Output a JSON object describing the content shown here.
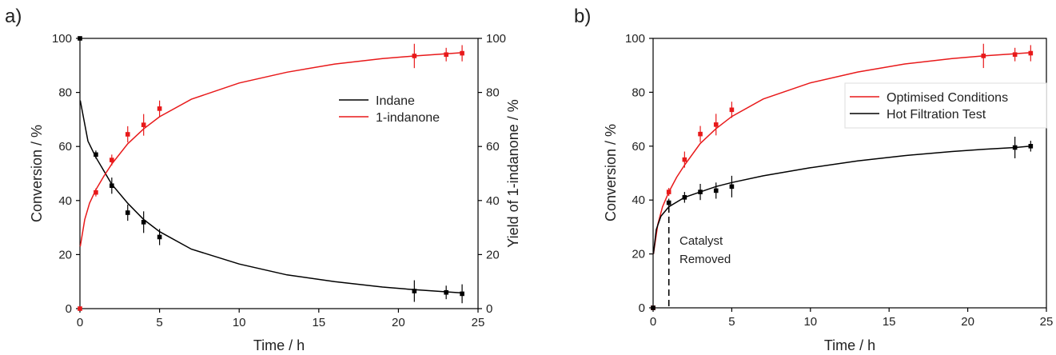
{
  "chart_data": [
    {
      "panel_label": "a)",
      "type": "line",
      "xlabel": "Time / h",
      "ylabel": "Conversion / %",
      "y2label": "Yield of 1-indanone / %",
      "xlim": [
        0,
        25
      ],
      "ylim": [
        0,
        100
      ],
      "y2lim": [
        0,
        100
      ],
      "x_ticks": [
        0,
        5,
        10,
        15,
        20,
        25
      ],
      "y_ticks": [
        0,
        20,
        40,
        60,
        80,
        100
      ],
      "y2_ticks": [
        0,
        20,
        40,
        60,
        80,
        100
      ],
      "legend_position": "upper-right",
      "series": [
        {
          "name": "Indane",
          "color": "#000000",
          "points": [
            {
              "x": 0,
              "y": 100,
              "err": 0
            },
            {
              "x": 1,
              "y": 57,
              "err": 1.5
            },
            {
              "x": 2,
              "y": 45.5,
              "err": 3
            },
            {
              "x": 3,
              "y": 35.5,
              "err": 3
            },
            {
              "x": 4,
              "y": 32,
              "err": 4
            },
            {
              "x": 5,
              "y": 26.5,
              "err": 3
            },
            {
              "x": 21,
              "y": 6.5,
              "err": 4
            },
            {
              "x": 23,
              "y": 6,
              "err": 2.5
            },
            {
              "x": 24,
              "y": 5.5,
              "err": 3.5
            }
          ],
          "fit": {
            "x": [
              0.02,
              0.5,
              1,
              2,
              3,
              4,
              5,
              7,
              10,
              13,
              16,
              19,
              21,
              23,
              24
            ],
            "y": [
              77,
              62,
              56,
              46,
              39,
              33,
              28.5,
              22,
              16.5,
              12.5,
              10,
              8,
              7,
              6.2,
              5.8
            ]
          }
        },
        {
          "name": "1-indanone",
          "color": "#e8191a",
          "points": [
            {
              "x": 0,
              "y": 0,
              "err": 0
            },
            {
              "x": 1,
              "y": 43,
              "err": 1.5
            },
            {
              "x": 2,
              "y": 55,
              "err": 2
            },
            {
              "x": 3,
              "y": 64.5,
              "err": 3
            },
            {
              "x": 4,
              "y": 68,
              "err": 4
            },
            {
              "x": 5,
              "y": 74,
              "err": 3
            },
            {
              "x": 21,
              "y": 93.5,
              "err": 4.5
            },
            {
              "x": 23,
              "y": 94,
              "err": 2.5
            },
            {
              "x": 24,
              "y": 94.5,
              "err": 3
            }
          ],
          "fit": {
            "x": [
              0.02,
              0.3,
              0.6,
              1,
              1.5,
              2,
              3,
              4,
              5,
              7,
              10,
              13,
              16,
              19,
              21,
              23,
              24
            ],
            "y": [
              23,
              33,
              39,
              44,
              49,
              53.5,
              61,
              66.5,
              71,
              77.5,
              83.5,
              87.5,
              90.5,
              92.5,
              93.5,
              94.3,
              94.7
            ]
          }
        }
      ]
    },
    {
      "panel_label": "b)",
      "type": "line",
      "xlabel": "Time / h",
      "ylabel": "Conversion / %",
      "xlim": [
        0,
        25
      ],
      "ylim": [
        0,
        100
      ],
      "x_ticks": [
        0,
        5,
        10,
        15,
        20,
        25
      ],
      "y_ticks": [
        0,
        20,
        40,
        60,
        80,
        100
      ],
      "legend_position": "upper-right",
      "annotation": {
        "text_lines": [
          "Catalyst",
          "Removed"
        ],
        "x": 1
      },
      "series": [
        {
          "name": "Optimised Conditions",
          "color": "#e8191a",
          "points": [
            {
              "x": 0,
              "y": 0,
              "err": 0
            },
            {
              "x": 1,
              "y": 43,
              "err": 1.5
            },
            {
              "x": 2,
              "y": 55,
              "err": 3
            },
            {
              "x": 3,
              "y": 64.5,
              "err": 3
            },
            {
              "x": 4,
              "y": 68,
              "err": 4
            },
            {
              "x": 5,
              "y": 73.5,
              "err": 3
            },
            {
              "x": 21,
              "y": 93.5,
              "err": 4.5
            },
            {
              "x": 23,
              "y": 94,
              "err": 2.5
            },
            {
              "x": 24,
              "y": 94.5,
              "err": 3
            }
          ],
          "fit": {
            "x": [
              0.02,
              0.3,
              0.6,
              1,
              1.5,
              2,
              3,
              4,
              5,
              7,
              10,
              13,
              16,
              19,
              21,
              23,
              24
            ],
            "y": [
              20,
              31,
              37.5,
              43,
              48.5,
              53,
              61,
              66.5,
              71,
              77.5,
              83.5,
              87.5,
              90.5,
              92.5,
              93.5,
              94.3,
              94.7
            ]
          }
        },
        {
          "name": "Hot Filtration Test",
          "color": "#000000",
          "points": [
            {
              "x": 0,
              "y": 0,
              "err": 0
            },
            {
              "x": 1,
              "y": 39,
              "err": 1.5
            },
            {
              "x": 2,
              "y": 41,
              "err": 2
            },
            {
              "x": 3,
              "y": 43,
              "err": 3
            },
            {
              "x": 4,
              "y": 43.5,
              "err": 3
            },
            {
              "x": 5,
              "y": 45,
              "err": 4
            },
            {
              "x": 23,
              "y": 59.5,
              "err": 4
            },
            {
              "x": 24,
              "y": 60,
              "err": 2
            }
          ],
          "fit": {
            "x": [
              0.02,
              0.2,
              0.5,
              1,
              2,
              3,
              4,
              5,
              7,
              10,
              13,
              16,
              19,
              21,
              23,
              24
            ],
            "y": [
              20,
              29,
              34,
              37.5,
              41,
              43,
              45,
              46.5,
              49,
              52,
              54.5,
              56.5,
              58,
              58.8,
              59.5,
              60
            ]
          }
        }
      ]
    }
  ]
}
